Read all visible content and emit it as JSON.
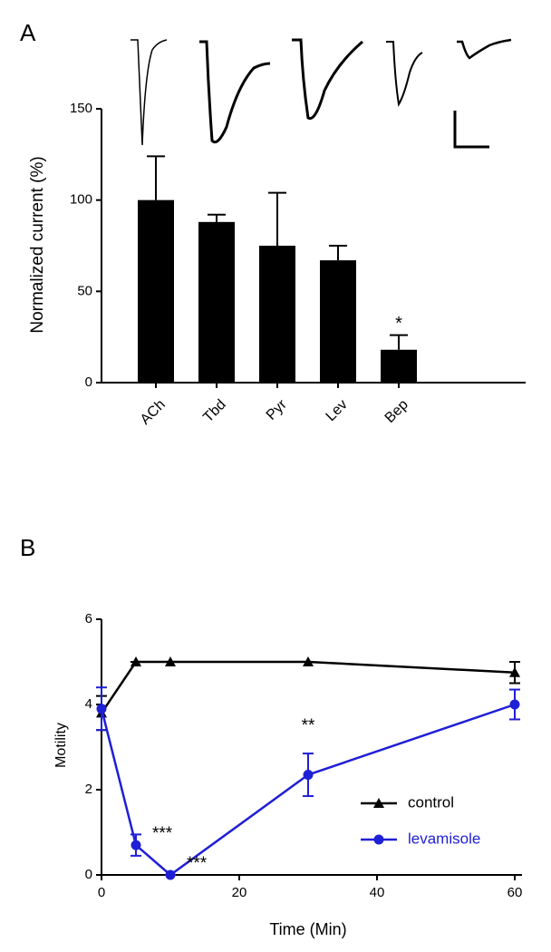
{
  "chart_data": [
    {
      "type": "bar",
      "panel_label": "A",
      "ylabel": "Normalized current (%)",
      "categories": [
        "ACh",
        "Tbd",
        "Pyr",
        "Lev",
        "Bep"
      ],
      "values": [
        100,
        88,
        75,
        67,
        18
      ],
      "errors": [
        24,
        4,
        29,
        8,
        8
      ],
      "color": "#000000",
      "ylim": [
        0,
        150
      ],
      "yticks": [
        0,
        50,
        100,
        150
      ],
      "annotations": [
        "*"
      ]
    },
    {
      "type": "line",
      "panel_label": "B",
      "xlabel": "Time (Min)",
      "ylabel": "Motility",
      "x": [
        0,
        5,
        10,
        30,
        60
      ],
      "series": [
        {
          "name": "control",
          "color": "#000000",
          "marker": "triangle",
          "values": [
            3.8,
            5,
            5,
            5,
            4.75
          ],
          "errors": [
            0.4,
            0,
            0,
            0,
            0.25
          ]
        },
        {
          "name": "levamisole",
          "color": "#1f1fd6",
          "marker": "circle",
          "values": [
            3.9,
            0.7,
            0,
            2.35,
            4.0
          ],
          "errors": [
            0.5,
            0.25,
            0,
            0.5,
            0.35
          ]
        }
      ],
      "xlim": [
        0,
        60
      ],
      "ylim": [
        0,
        6
      ],
      "xticks": [
        0,
        20,
        40,
        60
      ],
      "yticks": [
        0,
        2,
        4,
        6
      ],
      "legend": "lower right",
      "annotations": [
        "***",
        "***",
        "**"
      ]
    }
  ]
}
